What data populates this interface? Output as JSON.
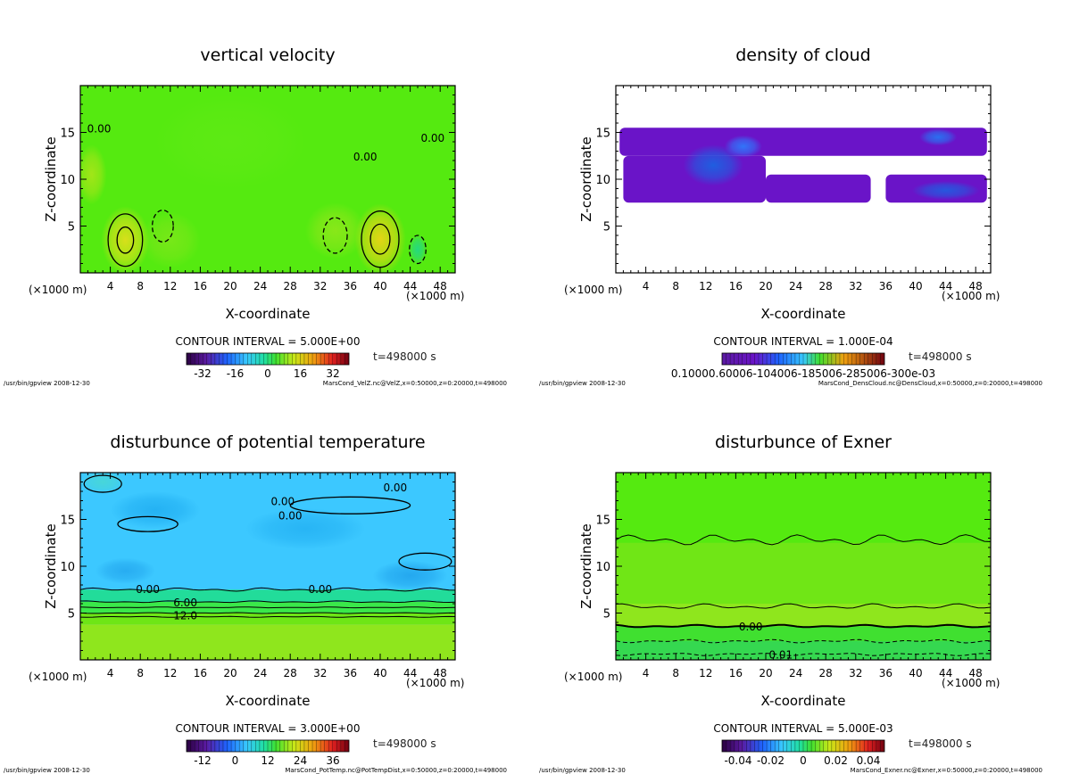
{
  "chart_data": [
    {
      "type": "heatmap",
      "title": "vertical velocity",
      "xlabel": "X-coordinate",
      "ylabel": "Z-coordinate",
      "x_unit": "(×1000 m)",
      "xlim": [
        0,
        50
      ],
      "ylim": [
        0,
        20
      ],
      "xticks": [
        4,
        8,
        12,
        16,
        20,
        24,
        28,
        32,
        36,
        40,
        44,
        48
      ],
      "yticks": [
        5,
        10,
        15
      ],
      "base_color": "#55ea10",
      "blobs": [
        {
          "x": 6,
          "z": 3.5,
          "rx": 3.2,
          "rz": 3.6,
          "color": "#d8e01a",
          "weight": 1
        },
        {
          "x": 40,
          "z": 3.6,
          "rx": 3.4,
          "rz": 3.8,
          "color": "#e3d515",
          "weight": 1
        },
        {
          "x": 1.5,
          "z": 10.5,
          "rx": 2.0,
          "rz": 3.2,
          "color": "#b5e41a",
          "weight": 0.8
        },
        {
          "x": 34,
          "z": 4.5,
          "rx": 4.0,
          "rz": 3.0,
          "color": "#9fe61d",
          "weight": 0.7
        },
        {
          "x": 12,
          "z": 3.5,
          "rx": 4.0,
          "rz": 3.0,
          "color": "#8ee61d",
          "weight": 0.6
        },
        {
          "x": 45,
          "z": 2.5,
          "rx": 1.2,
          "rz": 1.6,
          "color": "#1fd78d",
          "weight": 0.9
        },
        {
          "x": 20,
          "z": 14,
          "rx": 10,
          "rz": 5,
          "color": "#66ea18",
          "weight": 0.5
        }
      ],
      "contours": [
        {
          "x": 6,
          "z": 3.5,
          "rx": 1.1,
          "rz": 1.4,
          "style": "solid"
        },
        {
          "x": 6,
          "z": 3.5,
          "rx": 2.3,
          "rz": 2.8,
          "style": "solid"
        },
        {
          "x": 40,
          "z": 3.6,
          "rx": 1.3,
          "rz": 1.6,
          "style": "solid"
        },
        {
          "x": 40,
          "z": 3.6,
          "rx": 2.5,
          "rz": 3.0,
          "style": "solid"
        },
        {
          "x": 45,
          "z": 2.5,
          "rx": 1.1,
          "rz": 1.5,
          "style": "dashed"
        },
        {
          "x": 34,
          "z": 4,
          "rx": 1.6,
          "rz": 1.9,
          "style": "dashed"
        },
        {
          "x": 11,
          "z": 5,
          "rx": 1.4,
          "rz": 1.7,
          "style": "dashed"
        }
      ],
      "lines": [],
      "contour_labels": [
        {
          "text": "0.00",
          "x": 2.5,
          "z": 15.5
        },
        {
          "text": "0.00",
          "x": 38,
          "z": 12.5
        },
        {
          "text": "0.00",
          "x": 47,
          "z": 14.5
        }
      ],
      "contour_interval": "CONTOUR INTERVAL = 5.000E+00",
      "colorbar_ticks": [
        "-32",
        "-16",
        "0",
        "16",
        "32"
      ],
      "colorbar_type": "full",
      "time_label": "t=498000 s",
      "footer_left": "/usr/bin/gpview 2008-12-30",
      "footer_right": "MarsCond_VelZ.nc@VelZ,x=0:50000,z=0:20000,t=498000"
    },
    {
      "type": "heatmap",
      "title": "density of cloud",
      "xlabel": "X-coordinate",
      "ylabel": "Z-coordinate",
      "x_unit": "(×1000 m)",
      "xlim": [
        0,
        50
      ],
      "ylim": [
        0,
        20
      ],
      "xticks": [
        4,
        8,
        12,
        16,
        20,
        24,
        28,
        32,
        36,
        40,
        44,
        48
      ],
      "yticks": [
        5,
        10,
        15
      ],
      "base_color": "#ffffff",
      "cloud_bands": [
        {
          "x0": 0.5,
          "x1": 49.5,
          "z0": 12.5,
          "z1": 15.5,
          "color": "#6a14c8"
        },
        {
          "x0": 1,
          "x1": 20,
          "z0": 7.5,
          "z1": 12.5,
          "color": "#6a14c8"
        },
        {
          "x0": 20,
          "x1": 34,
          "z0": 7.5,
          "z1": 10.5,
          "color": "#6a14c8"
        },
        {
          "x0": 36,
          "x1": 49.5,
          "z0": 7.5,
          "z1": 10.5,
          "color": "#6a14c8"
        }
      ],
      "blobs": [
        {
          "x": 13,
          "z": 11.5,
          "rx": 4,
          "rz": 2.2,
          "color": "#1f5ee0",
          "weight": 1
        },
        {
          "x": 17,
          "z": 13.5,
          "rx": 2.5,
          "rz": 1.2,
          "color": "#2a7fff",
          "weight": 0.9
        },
        {
          "x": 43,
          "z": 14.5,
          "rx": 2.5,
          "rz": 0.9,
          "color": "#2a6ff0",
          "weight": 1
        },
        {
          "x": 44,
          "z": 8.8,
          "rx": 4.5,
          "rz": 1.0,
          "color": "#1f5ee0",
          "weight": 0.9
        }
      ],
      "contours": [],
      "lines": [],
      "contour_labels": [],
      "contour_interval": "CONTOUR INTERVAL = 1.000E-04",
      "colorbar_ticks": [
        "0.10000.60006-104006-185006-285006-300e-03"
      ],
      "colorbar_type": "cloud",
      "time_label": "t=498000 s",
      "footer_left": "/usr/bin/gpview 2008-12-30",
      "footer_right": "MarsCond_DensCloud.nc@DensCloud,x=0:50000,z=0:20000,t=498000"
    },
    {
      "type": "heatmap",
      "title": "disturbunce of potential temperature",
      "xlabel": "X-coordinate",
      "ylabel": "Z-coordinate",
      "x_unit": "(×1000 m)",
      "xlim": [
        0,
        50
      ],
      "ylim": [
        0,
        20
      ],
      "xticks": [
        4,
        8,
        12,
        16,
        20,
        24,
        28,
        32,
        36,
        40,
        44,
        48
      ],
      "yticks": [
        5,
        10,
        15
      ],
      "base_color": "#3cc8ff",
      "bands": [
        {
          "z0": 0,
          "z1": 3.8,
          "color": "#8fe61d"
        },
        {
          "z0": 3.8,
          "z1": 5.0,
          "color": "#6ee616"
        },
        {
          "z0": 5.0,
          "z1": 6.2,
          "color": "#3ae84a"
        },
        {
          "z0": 6.2,
          "z1": 7.5,
          "color": "#22dc9a"
        }
      ],
      "blobs": [
        {
          "x": 10,
          "z": 16,
          "rx": 6,
          "rz": 2,
          "color": "#1aa8ee",
          "weight": 0.7
        },
        {
          "x": 30,
          "z": 14,
          "rx": 8,
          "rz": 2.2,
          "color": "#1aa8ee",
          "weight": 0.6
        },
        {
          "x": 44,
          "z": 9,
          "rx": 5,
          "rz": 1.6,
          "color": "#1a9ae8",
          "weight": 0.7
        },
        {
          "x": 6,
          "z": 9.5,
          "rx": 4,
          "rz": 1.4,
          "color": "#1a9ae8",
          "weight": 0.6
        },
        {
          "x": 3,
          "z": 19,
          "rx": 3,
          "rz": 1.2,
          "color": "#4fe0c0",
          "weight": 0.6
        }
      ],
      "contours": [
        {
          "x": 36,
          "z": 16.5,
          "rx": 8,
          "rz": 0.9,
          "style": "solid"
        },
        {
          "x": 9,
          "z": 14.5,
          "rx": 4,
          "rz": 0.8,
          "style": "solid"
        },
        {
          "x": 46,
          "z": 10.5,
          "rx": 3.5,
          "rz": 0.9,
          "style": "solid"
        },
        {
          "x": 3,
          "z": 18.8,
          "rx": 2.5,
          "rz": 0.9,
          "style": "solid"
        }
      ],
      "lines": [
        {
          "z": 7.5,
          "style": "solid",
          "wave": 0.2
        },
        {
          "z": 6.2,
          "style": "solid",
          "wave": 0.1
        },
        {
          "z": 5.6,
          "style": "solid",
          "wave": 0.05
        },
        {
          "z": 5.0,
          "style": "solid",
          "wave": 0.05
        },
        {
          "z": 4.6,
          "style": "solid",
          "wave": 0.05
        }
      ],
      "contour_labels": [
        {
          "text": "0.00",
          "x": 28,
          "z": 15.5
        },
        {
          "text": "0.00",
          "x": 27,
          "z": 17.0
        },
        {
          "text": "0.00",
          "x": 42,
          "z": 18.5
        },
        {
          "text": "0.00",
          "x": 9,
          "z": 7.6
        },
        {
          "text": "0.00",
          "x": 32,
          "z": 7.6
        },
        {
          "text": "6.00",
          "x": 14,
          "z": 6.2
        },
        {
          "text": "12.0",
          "x": 14,
          "z": 4.8
        }
      ],
      "contour_interval": "CONTOUR INTERVAL = 3.000E+00",
      "colorbar_ticks": [
        "-12",
        "0",
        "12",
        "24",
        "36"
      ],
      "colorbar_type": "full",
      "time_label": "t=498000 s",
      "footer_left": "/usr/bin/gpview 2008-12-30",
      "footer_right": "MarsCond_PotTemp.nc@PotTempDist,x=0:50000,z=0:20000,t=498000"
    },
    {
      "type": "heatmap",
      "title": "disturbunce of Exner",
      "xlabel": "X-coordinate",
      "ylabel": "Z-coordinate",
      "x_unit": "(×1000 m)",
      "xlim": [
        0,
        50
      ],
      "ylim": [
        0,
        20
      ],
      "xticks": [
        4,
        8,
        12,
        16,
        20,
        24,
        28,
        32,
        36,
        40,
        44,
        48
      ],
      "yticks": [
        5,
        10,
        15
      ],
      "base_color": "#55ea10",
      "bands": [
        {
          "z0": 0,
          "z1": 2.0,
          "color": "#35d850"
        },
        {
          "z0": 2.0,
          "z1": 3.6,
          "color": "#40e030"
        },
        {
          "z0": 3.6,
          "z1": 6.0,
          "color": "#8fe61d"
        },
        {
          "z0": 6.0,
          "z1": 12.5,
          "color": "#70e616"
        }
      ],
      "blobs": [],
      "contours": [],
      "lines": [
        {
          "z": 12.8,
          "style": "solid",
          "wave": 0.6
        },
        {
          "z": 5.7,
          "style": "solid",
          "wave": 0.3
        },
        {
          "z": 3.6,
          "style": "solid",
          "wave": 0.15,
          "bold": true
        },
        {
          "z": 2.0,
          "style": "dashed",
          "wave": 0.2
        },
        {
          "z": 0.6,
          "style": "dashed",
          "wave": 0.15
        }
      ],
      "contour_labels": [
        {
          "text": "0.00",
          "x": 18,
          "z": 3.6
        },
        {
          "text": "0.01",
          "x": 22,
          "z": 0.6
        }
      ],
      "contour_interval": "CONTOUR INTERVAL = 5.000E-03",
      "colorbar_ticks": [
        "-0.04",
        "-0.02",
        "0",
        "0.02",
        "0.04"
      ],
      "colorbar_type": "full",
      "time_label": "t=498000 s",
      "footer_left": "/usr/bin/gpview 2008-12-30",
      "footer_right": "MarsCond_Exner.nc@Exner,x=0:50000,z=0:20000,t=498000"
    }
  ]
}
